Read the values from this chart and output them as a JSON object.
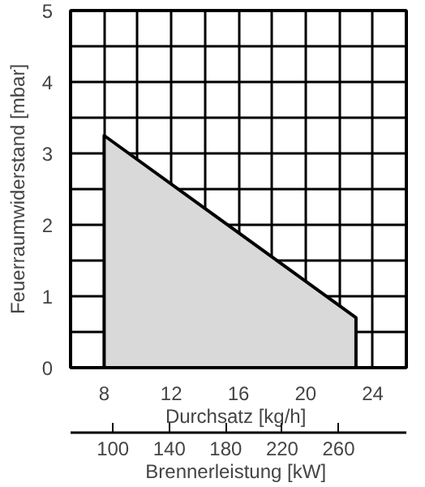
{
  "chart_data": {
    "type": "area",
    "xlabel": "Durchsatz  [kg/h]",
    "ylabel": "Feuerraumwiderstand [mbar]",
    "x2label": "Brennerleistung  [kW]",
    "x": [
      8,
      23
    ],
    "series": [
      {
        "color": "#d9d9d9",
        "values": [
          3.25,
          0.7
        ]
      }
    ],
    "xlim": [
      6,
      26
    ],
    "xticks": [
      {
        "value": 6,
        "label": null
      },
      8,
      {
        "value": 10,
        "label": null
      },
      12,
      {
        "value": 14,
        "label": null
      },
      16,
      {
        "value": 18,
        "label": null
      },
      20,
      {
        "value": 22,
        "label": null
      },
      24,
      {
        "value": 26,
        "label": null
      }
    ],
    "ylim": [
      0,
      5
    ],
    "yticks": [
      0,
      {
        "value": 0.5,
        "label": null
      },
      1,
      {
        "value": 1.5,
        "label": null
      },
      2,
      {
        "value": 2.5,
        "label": null
      },
      3,
      {
        "value": 3.5,
        "label": null
      },
      4,
      {
        "value": 4.5,
        "label": null
      },
      5
    ],
    "x2lim": [
      70,
      308
    ],
    "x2ticks": [
      100,
      140,
      180,
      220,
      260
    ],
    "grid": true
  }
}
